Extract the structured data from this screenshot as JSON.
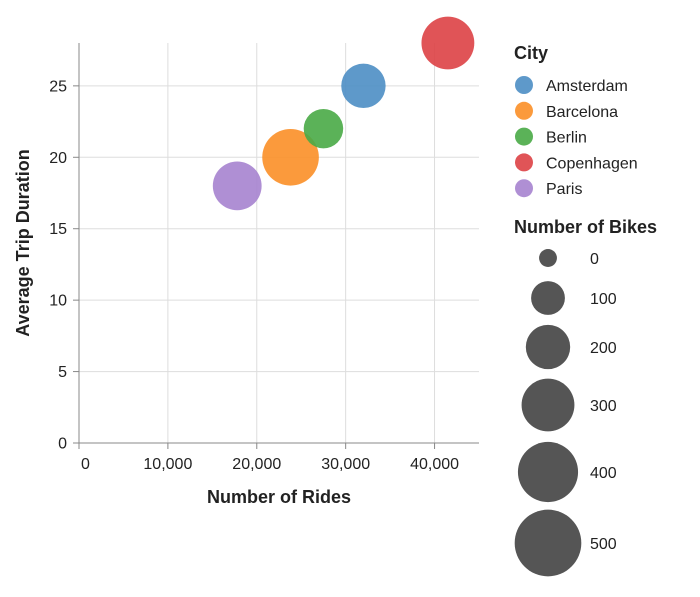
{
  "chart_data": {
    "type": "scatter",
    "xlabel": "Number of Rides",
    "ylabel": "Average Trip Duration",
    "xlim": [
      0,
      45000
    ],
    "ylim": [
      0,
      28
    ],
    "x_ticks": [
      0,
      10000,
      20000,
      30000,
      40000
    ],
    "y_ticks": [
      0,
      5,
      10,
      15,
      20,
      25
    ],
    "x_tick_labels": [
      "0",
      "10,000",
      "20,000",
      "30,000",
      "40,000"
    ],
    "y_tick_labels": [
      "0",
      "5",
      "10",
      "15",
      "20",
      "25"
    ],
    "grid": true,
    "legend_placement": "right",
    "color_legend_title": "City",
    "size_legend_title": "Number of Bikes",
    "size_legend_values": [
      0,
      100,
      200,
      300,
      400,
      500
    ],
    "size_legend_labels": [
      "0",
      "100",
      "200",
      "300",
      "400",
      "500"
    ],
    "size_domain_max": 500,
    "series": [
      {
        "name": "Amsterdam",
        "color": "#4c8ec4",
        "x": 32000,
        "y": 25,
        "size": 200
      },
      {
        "name": "Barcelona",
        "color": "#fb8f27",
        "x": 23800,
        "y": 20,
        "size": 350
      },
      {
        "name": "Berlin",
        "color": "#49aa46",
        "x": 27500,
        "y": 22,
        "size": 150
      },
      {
        "name": "Copenhagen",
        "color": "#dd4145",
        "x": 41500,
        "y": 28,
        "size": 300
      },
      {
        "name": "Paris",
        "color": "#a683cf",
        "x": 17800,
        "y": 18,
        "size": 250
      }
    ]
  }
}
